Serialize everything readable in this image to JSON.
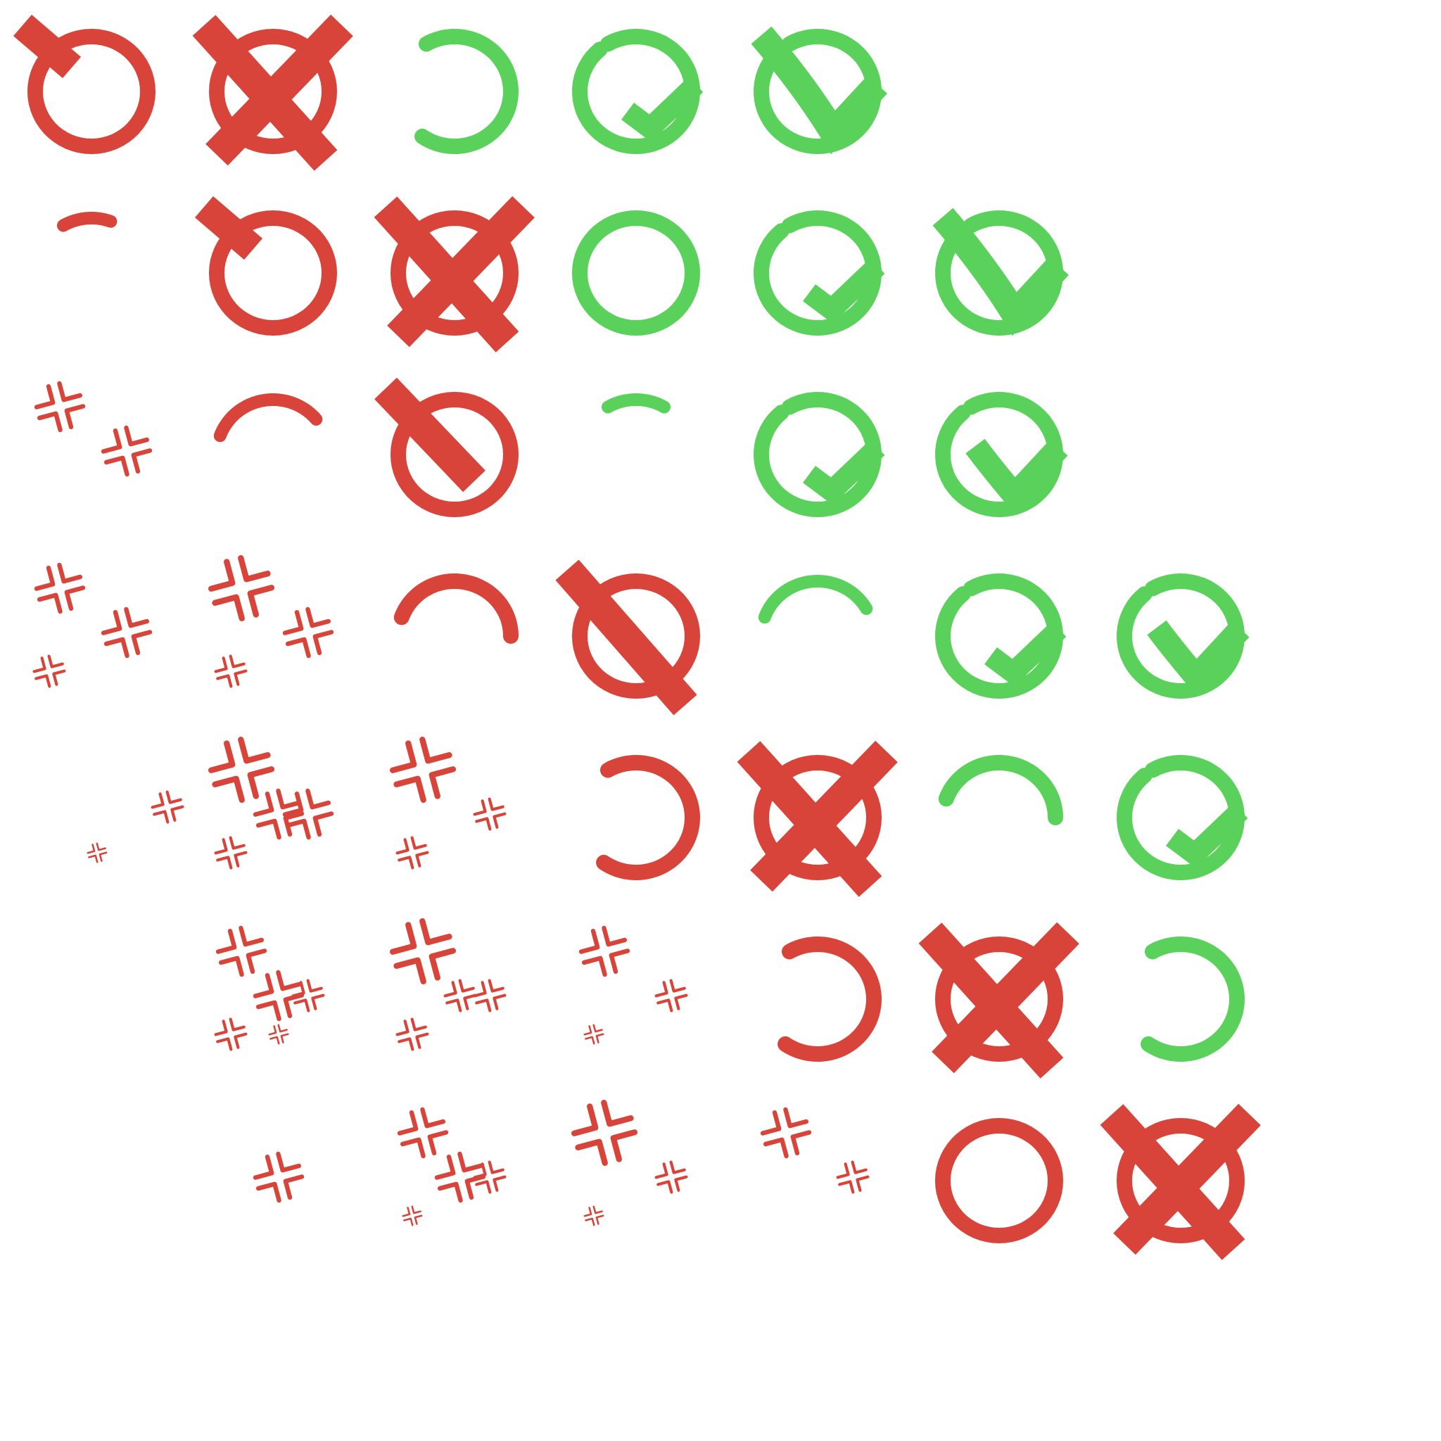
{
  "sprite_sheet": {
    "background": "#ffffff",
    "colors": {
      "red": "#d9443a",
      "green": "#59d15a"
    },
    "grid": {
      "cols": 8,
      "rows": 7
    },
    "rows": [
      [
        "red-ring-start",
        "red-ring-x",
        "green-ring-open",
        "green-ring-hook",
        "green-ring-check",
        null,
        null,
        null
      ],
      [
        "red-stroke-dash",
        "red-ring-start",
        "red-ring-x",
        "green-ring-full",
        "green-ring-hook",
        "green-ring-check",
        null,
        null
      ],
      [
        "red-burst-a",
        "red-arc-half",
        "red-ring-slash",
        "green-stroke-dash",
        "green-ring-hook",
        "green-ring-check-small",
        null,
        null
      ],
      [
        "red-burst-b",
        "red-burst-c",
        "red-arc-big",
        "red-ring-slash-full",
        "green-arc-half",
        "green-ring-hook",
        "green-ring-check-small",
        null
      ],
      [
        null,
        "red-burst-d",
        "red-burst-e",
        "red-ring-open",
        "red-ring-x",
        "green-arc-big",
        "green-ring-hook",
        null
      ],
      [
        null,
        "red-burst-f",
        "red-burst-g",
        "red-burst-h",
        "red-ring-open",
        "red-ring-x",
        "green-ring-open",
        null
      ],
      [
        null,
        null,
        "red-burst-i",
        "red-burst-j",
        "red-burst-k",
        "red-ring-full",
        "red-ring-x",
        null
      ]
    ]
  }
}
